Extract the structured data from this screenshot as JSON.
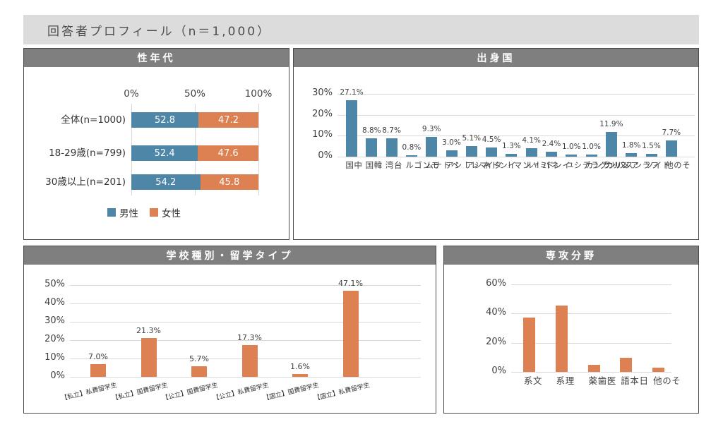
{
  "title": "回答者プロフィール（n＝1,000）",
  "panels": {
    "gender": {
      "header": "性年代"
    },
    "country": {
      "header": "出身国"
    },
    "school": {
      "header": "学校種別・留学タイプ"
    },
    "major": {
      "header": "専攻分野"
    }
  },
  "colors": {
    "male_blue": "#4e86a8",
    "female_orange": "#de8152",
    "header_bg": "#7f7f7f",
    "title_bar_bg": "#dcdcdc",
    "gridline": "#d9d9d9"
  },
  "chart_data": [
    {
      "id": "gender_age",
      "type": "bar",
      "orientation": "horizontal_stacked",
      "title": "性年代",
      "categories": [
        "全体(n=1000)",
        "18-29歳(n=799)",
        "30歳以上(n=201)"
      ],
      "series": [
        {
          "name": "男性",
          "color": "#4e86a8",
          "values": [
            52.8,
            52.4,
            54.2
          ]
        },
        {
          "name": "女性",
          "color": "#de8152",
          "values": [
            47.2,
            47.6,
            45.8
          ]
        }
      ],
      "xticks": [
        "0%",
        "50%",
        "100%"
      ],
      "xlim": [
        0,
        100
      ],
      "legend_position": "bottom",
      "data_labels": true,
      "grid": "vertical"
    },
    {
      "id": "origin_country",
      "type": "bar",
      "title": "出身国",
      "categories": [
        "中国",
        "韓国",
        "台湾",
        "モンゴル",
        "ベトナム",
        "マレーシア",
        "インドネシア",
        "タイ",
        "ミャンマー",
        "ネパール",
        "インド",
        "バングラデシュ",
        "スリランカ",
        "アメリカ",
        "フランス",
        "ドイツ",
        "その他"
      ],
      "values": [
        27.1,
        8.8,
        8.7,
        0.8,
        9.3,
        3.0,
        5.1,
        4.5,
        1.3,
        4.1,
        2.4,
        1.0,
        1.0,
        11.9,
        1.8,
        1.5,
        7.7
      ],
      "yticks": [
        "0%",
        "10%",
        "20%",
        "30%"
      ],
      "ylim": [
        0,
        30
      ],
      "bar_color": "#4e86a8",
      "data_labels": true,
      "grid": "horizontal",
      "legend_position": "none"
    },
    {
      "id": "school_type",
      "type": "bar",
      "title": "学校種別・留学タイプ",
      "categories": [
        "【私立】私費留学生",
        "【私立】国費留学生",
        "【公立】国費留学生",
        "【公立】私費留学生",
        "【国立】国費留学生",
        "【国立】私費留学生"
      ],
      "values": [
        7.0,
        21.3,
        5.7,
        17.3,
        1.6,
        47.1
      ],
      "yticks": [
        "0%",
        "10%",
        "20%",
        "30%",
        "40%",
        "50%"
      ],
      "ylim": [
        0,
        50
      ],
      "bar_color": "#de8152",
      "data_labels": true,
      "grid": "horizontal",
      "legend_position": "none"
    },
    {
      "id": "major_field",
      "type": "bar",
      "title": "専攻分野",
      "categories": [
        "文系",
        "理系",
        "医歯薬",
        "日本語",
        "その他"
      ],
      "values": [
        37.2,
        45.5,
        4.8,
        9.9,
        3.1
      ],
      "yticks": [
        "0%",
        "20%",
        "40%",
        "60%"
      ],
      "ylim": [
        0,
        60
      ],
      "bar_color": "#de8152",
      "data_labels": false,
      "grid": "horizontal",
      "legend_position": "none"
    }
  ]
}
